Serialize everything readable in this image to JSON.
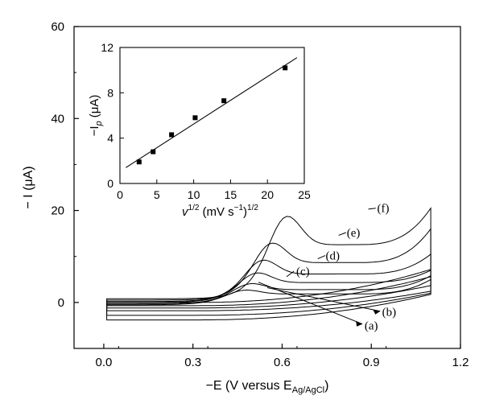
{
  "chart_data": [
    {
      "type": "line",
      "title": "",
      "xlabel": "−E (V versus E",
      "xlabel_sub": "Ag/AgCl",
      "xlabel_close": ")",
      "ylabel": "− I (μA)",
      "xlim": [
        -0.1,
        1.2
      ],
      "ylim": [
        -10,
        60
      ],
      "xticks": [
        0.0,
        0.3,
        0.6,
        0.9,
        1.2
      ],
      "xtick_labels": [
        "0.0",
        "0.3",
        "0.6",
        "0.9",
        "1.2"
      ],
      "yticks": [
        0,
        20,
        40,
        60
      ],
      "ytick_labels": [
        "0",
        "20",
        "40",
        "60"
      ],
      "grid": false,
      "series": [
        {
          "name": "(a)",
          "peak_x": 0.47,
          "peak_y": 3.0,
          "start_y": -0.5,
          "end_y": 5.0,
          "return_y": -3.8
        },
        {
          "name": "(b)",
          "peak_x": 0.49,
          "peak_y": 4.5,
          "start_y": -0.3,
          "end_y": 5.8,
          "return_y": -2.8
        },
        {
          "name": "(c)",
          "peak_x": 0.51,
          "peak_y": 7.0,
          "start_y": 0.0,
          "end_y": 7.0,
          "return_y": -1.8
        },
        {
          "name": "(d)",
          "peak_x": 0.53,
          "peak_y": 10.0,
          "start_y": 0.2,
          "end_y": 10.5,
          "return_y": -1.2
        },
        {
          "name": "(e)",
          "peak_x": 0.56,
          "peak_y": 14.0,
          "start_y": 0.5,
          "end_y": 16.0,
          "return_y": -0.7
        },
        {
          "name": "(f)",
          "peak_x": 0.61,
          "peak_y": 20.3,
          "start_y": 0.8,
          "end_y": 20.5,
          "return_y": 0.0
        }
      ]
    },
    {
      "type": "scatter",
      "inset": true,
      "title": "",
      "xlabel": "v",
      "xlabel_sup": "1/2",
      "xlabel_units": "(mV s",
      "xlabel_units_sup": "−1",
      "xlabel_close": ")",
      "xlabel_close_sup": "1/2",
      "ylabel": "−I",
      "ylabel_sub": "p",
      "ylabel_units": "(μA)",
      "xlim": [
        0,
        25
      ],
      "ylim": [
        0,
        12
      ],
      "xticks": [
        0,
        5,
        10,
        15,
        20,
        25
      ],
      "xtick_labels": [
        "0",
        "5",
        "10",
        "15",
        "20",
        "25"
      ],
      "yticks": [
        0,
        4,
        8,
        12
      ],
      "ytick_labels": [
        "0",
        "4",
        "8",
        "12"
      ],
      "points": [
        {
          "x": 2.6,
          "y": 1.9
        },
        {
          "x": 4.5,
          "y": 2.8
        },
        {
          "x": 7.0,
          "y": 4.3
        },
        {
          "x": 10.2,
          "y": 5.8
        },
        {
          "x": 14.1,
          "y": 7.3
        },
        {
          "x": 22.4,
          "y": 10.2
        }
      ],
      "fit_line": {
        "x": [
          0.8,
          24.0
        ],
        "y": [
          1.4,
          11.1
        ]
      }
    }
  ]
}
